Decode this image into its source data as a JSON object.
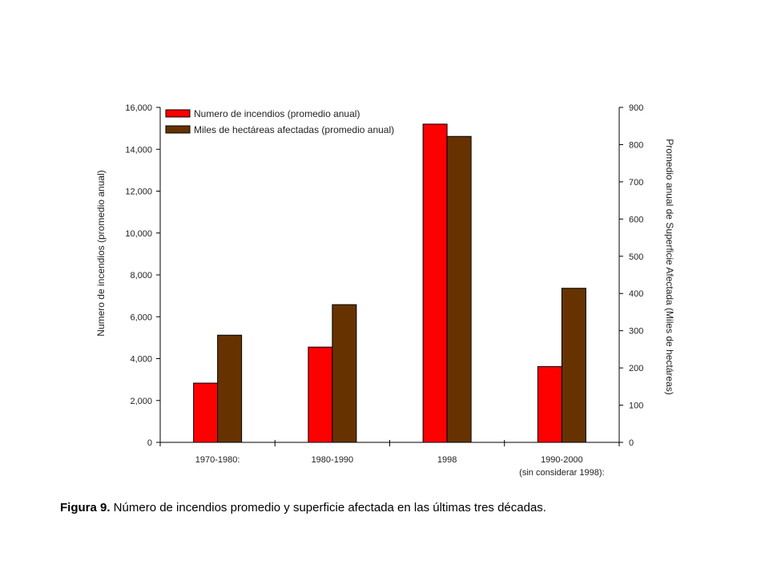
{
  "chart_data": {
    "type": "bar",
    "categories": [
      {
        "line1": "1970-1980:",
        "line2": ""
      },
      {
        "line1": "1980-1990",
        "line2": ""
      },
      {
        "line1": "1998",
        "line2": ""
      },
      {
        "line1": "1990-2000",
        "line2": "(sin considerar 1998):"
      }
    ],
    "series": [
      {
        "name": "Numero  de incendios (promedio anual)",
        "axis": "left",
        "color": "#ff0000",
        "values": [
          2830,
          4550,
          15200,
          3620
        ]
      },
      {
        "name": "Miles de hectáreas afectadas (promedio anual)",
        "axis": "right",
        "color": "#663300",
        "values": [
          288,
          370,
          822,
          414
        ]
      }
    ],
    "ylabel_left": "Numero  de incendios (promedio anual)",
    "ylabel_right": "Promedio anual de Superficie Afectada (Miles de hectáreas)",
    "ylim_left": [
      0,
      16000
    ],
    "ylim_right": [
      0,
      900
    ],
    "yticks_left": [
      "0",
      "2,000",
      "4,000",
      "6,000",
      "8,000",
      "10,000",
      "12,000",
      "14,000",
      "16,000"
    ],
    "yticks_right": [
      "0",
      "100",
      "200",
      "300",
      "400",
      "500",
      "600",
      "700",
      "800",
      "900"
    ],
    "legend_position": "top-left",
    "grid": false
  },
  "caption": {
    "label": "Figura 9.",
    "text": " Número de incendios promedio y superficie afectada en las últimas tres décadas."
  }
}
